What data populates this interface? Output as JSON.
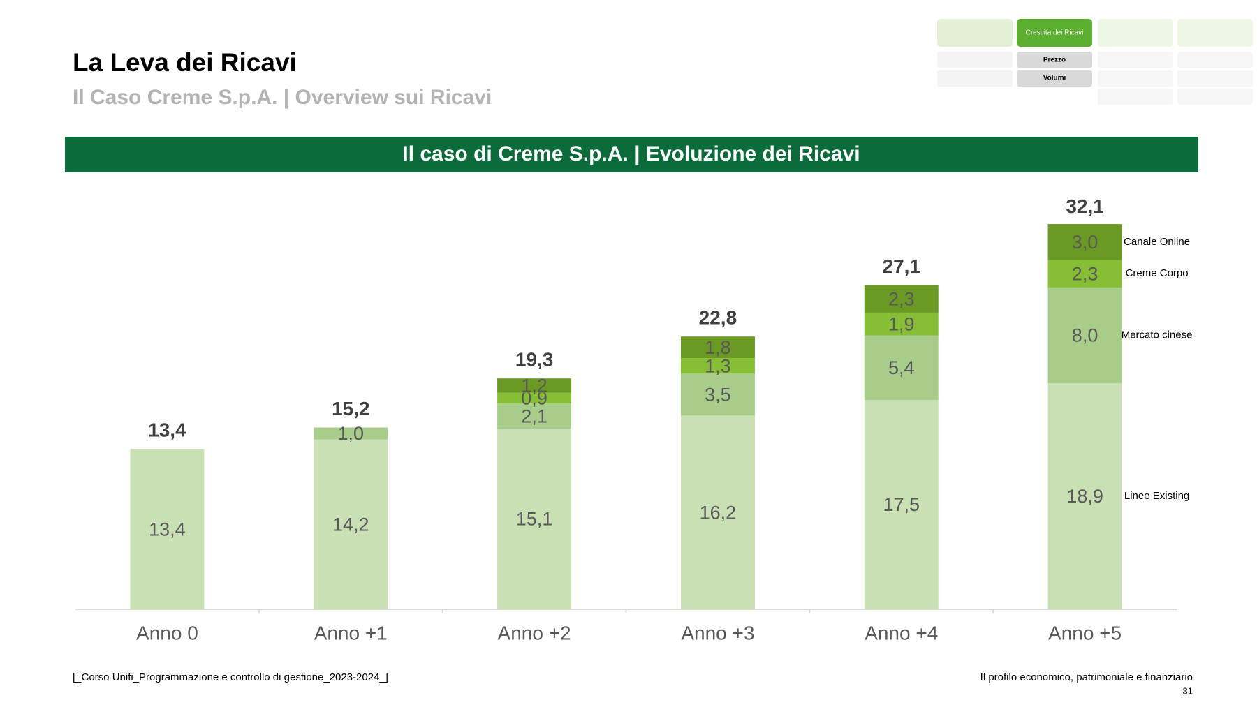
{
  "title": "La Leva dei Ricavi",
  "subtitle": "Il Caso Creme S.p.A. | Overview sui Ricavi",
  "nav": {
    "active": "Crescita dei Ricavi",
    "items": [
      "Prezzo",
      "Volumi"
    ]
  },
  "footer_left": "[_Corso Unifi_Programmazione e controllo di gestione_2023-2024_]",
  "footer_right": "Il profilo economico, patrimoniale e finanziario",
  "page_number": "31",
  "chart_data": {
    "type": "stacked_bar",
    "title": "Il caso di Creme S.p.A. | Evoluzione dei Ricavi",
    "categories": [
      "Anno 0",
      "Anno +1",
      "Anno +2",
      "Anno +3",
      "Anno +4",
      "Anno +5"
    ],
    "series": [
      {
        "name": "Linee Existing",
        "color": "#c9dfb4",
        "values": [
          13.4,
          14.2,
          15.1,
          16.2,
          17.5,
          18.9
        ],
        "value_labels": [
          "13,4",
          "14,2",
          "15,1",
          "16,2",
          "17,5",
          "18,9"
        ]
      },
      {
        "name": "Mercato cinese",
        "color": "#a8cd8a",
        "values": [
          null,
          1.0,
          2.1,
          3.5,
          5.4,
          8.0
        ],
        "value_labels": [
          null,
          "1,0",
          "2,1",
          "3,5",
          "5,4",
          "8,0"
        ]
      },
      {
        "name": "Creme Corpo",
        "color": "#86bf36",
        "values": [
          null,
          null,
          0.9,
          1.3,
          1.9,
          2.3
        ],
        "value_labels": [
          null,
          null,
          "0,9",
          "1,3",
          "1,9",
          "2,3"
        ]
      },
      {
        "name": "Canale Online",
        "color": "#6b9a24",
        "values": [
          null,
          null,
          1.2,
          1.8,
          2.3,
          3.0
        ],
        "value_labels": [
          null,
          null,
          "1,2",
          "1,8",
          "2,3",
          "3,0"
        ]
      }
    ],
    "totals": {
      "values": [
        13.4,
        15.2,
        19.3,
        22.8,
        27.1,
        32.1
      ],
      "value_labels": [
        "13,4",
        "15,2",
        "19,3",
        "22,8",
        "27,1",
        "32,1"
      ]
    }
  }
}
